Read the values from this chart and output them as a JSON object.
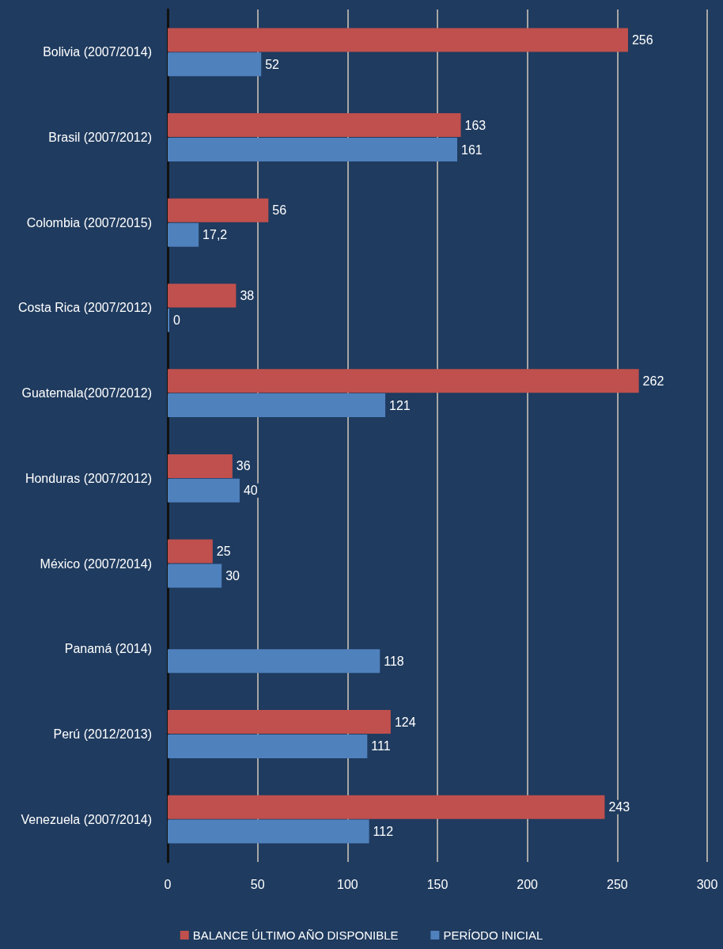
{
  "chart_data": {
    "type": "bar",
    "orientation": "horizontal",
    "categories": [
      "Bolivia (2007/2014)",
      "Brasil (2007/2012)",
      "Colombia (2007/2015)",
      "Costa Rica (2007/2012)",
      "Guatemala(2007/2012)",
      "Honduras (2007/2012)",
      "México (2007/2014)",
      "Panamá (2014)",
      "Perú (2012/2013)",
      "Venezuela (2007/2014)"
    ],
    "series": [
      {
        "name": "BALANCE ÚLTIMO AÑO DISPONIBLE",
        "color": "#c0504d",
        "values": [
          256,
          163,
          56,
          38,
          262,
          36,
          25,
          null,
          124,
          243
        ],
        "value_labels": [
          "256",
          "163",
          "56",
          "38",
          "262",
          "36",
          "25",
          null,
          "124",
          "243"
        ]
      },
      {
        "name": "PERÍODO INICIAL",
        "color": "#4f81bd",
        "values": [
          52,
          161,
          17.2,
          0,
          121,
          40,
          30,
          118,
          111,
          112
        ],
        "value_labels": [
          "52",
          "161",
          "17,2",
          "0",
          "121",
          "40",
          "30",
          "118",
          "111",
          "112"
        ]
      }
    ],
    "xlim": [
      0,
      300
    ],
    "xticks": [
      0,
      50,
      100,
      150,
      200,
      250,
      300
    ],
    "grid": "x",
    "legend": "bottom"
  }
}
